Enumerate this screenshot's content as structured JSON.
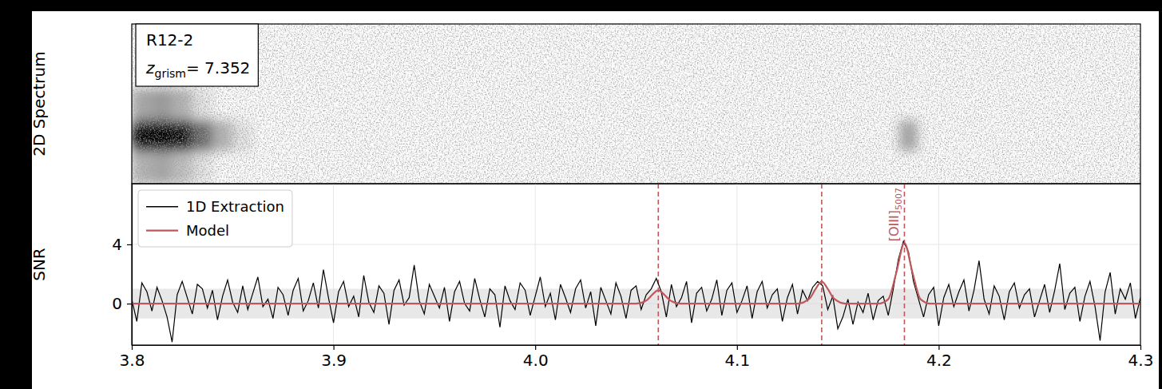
{
  "chart_data": [
    {
      "type": "heatmap",
      "ylabel": "2D Spectrum",
      "annotation": {
        "label": "R12-2",
        "symbol": "z",
        "subscript": "grism",
        "value_text": "= 7.352"
      },
      "xlim": [
        3.8,
        4.3
      ],
      "tick_labels": false,
      "zlim": [
        0,
        1
      ],
      "x_edges": [
        3.8,
        3.81,
        3.82,
        3.83,
        3.84,
        3.85,
        3.86,
        3.87,
        3.88,
        3.89,
        3.9,
        3.91,
        3.92,
        3.93,
        3.94,
        3.95,
        3.96,
        3.97,
        3.98,
        3.99,
        4.0,
        4.01,
        4.02,
        4.03,
        4.04,
        4.05,
        4.06,
        4.07,
        4.08,
        4.09,
        4.1,
        4.11,
        4.12,
        4.13,
        4.14,
        4.15,
        4.16,
        4.17,
        4.18,
        4.19,
        4.2,
        4.21,
        4.22,
        4.23,
        4.24,
        4.25,
        4.26,
        4.27,
        4.28,
        4.29,
        4.3
      ],
      "cells": [
        [
          0,
          0,
          0,
          0,
          0,
          0,
          0,
          0,
          0,
          0,
          0,
          0,
          0,
          0,
          0,
          0,
          0,
          0,
          0,
          0,
          0,
          0,
          0,
          0,
          0,
          0,
          0,
          0,
          0,
          0,
          0,
          0,
          0,
          0,
          0,
          0,
          0,
          0,
          0,
          0,
          0,
          0,
          0,
          0,
          0,
          0,
          0,
          0,
          0,
          0
        ],
        [
          0,
          0,
          0,
          0,
          0,
          0,
          0,
          0,
          0,
          0,
          0,
          0,
          0,
          0,
          0,
          0,
          0,
          0,
          0,
          0,
          0,
          0,
          0,
          0,
          0,
          0,
          0,
          0,
          0,
          0,
          0,
          0,
          0,
          0,
          0,
          0,
          0,
          0,
          0,
          0,
          0,
          0,
          0,
          0,
          0,
          0,
          0,
          0,
          0,
          0
        ],
        [
          0.35,
          0.4,
          0.3,
          0.1,
          0,
          0,
          0,
          0,
          0,
          0,
          0,
          0,
          0,
          0,
          0,
          0,
          0,
          0,
          0,
          0,
          0,
          0,
          0,
          0,
          0,
          0,
          0,
          0,
          0,
          0,
          0,
          0,
          0,
          0,
          0,
          0,
          0,
          0,
          0,
          0,
          0,
          0,
          0,
          0,
          0,
          0,
          0,
          0,
          0,
          0
        ],
        [
          1,
          1,
          0.95,
          0.6,
          0.3,
          0.1,
          0,
          0,
          0,
          0,
          0,
          0,
          0,
          0,
          0,
          0,
          0,
          0,
          0,
          0,
          0,
          0,
          0,
          0,
          0,
          0,
          0,
          0,
          0,
          0,
          0,
          0,
          0,
          0,
          0,
          0,
          0,
          0,
          0.35,
          0,
          0,
          0,
          0,
          0,
          0,
          0,
          0,
          0,
          0,
          0
        ],
        [
          0.3,
          0.35,
          0.25,
          0.1,
          0,
          0,
          0,
          0,
          0,
          0,
          0,
          0,
          0,
          0,
          0,
          0,
          0,
          0,
          0,
          0,
          0,
          0,
          0,
          0,
          0,
          0,
          0,
          0,
          0,
          0,
          0,
          0,
          0,
          0,
          0,
          0,
          0,
          0,
          0,
          0,
          0,
          0,
          0,
          0,
          0,
          0,
          0,
          0,
          0,
          0
        ]
      ]
    },
    {
      "type": "line",
      "ylabel": "SNR",
      "xlim": [
        3.8,
        4.3
      ],
      "ylim": [
        -2.8,
        8.1
      ],
      "xticks": [
        3.8,
        3.9,
        {
          "value": 4.0,
          "label": "4.0"
        },
        4.1,
        4.2,
        4.3
      ],
      "yticks": [
        0,
        4
      ],
      "grid": true,
      "legend": "upper left",
      "band": [
        -1,
        1
      ],
      "vlines": [
        {
          "x": 4.061
        },
        {
          "x": 4.142
        },
        {
          "x": 4.183,
          "label": "[OIII]",
          "label_sub": "5007"
        }
      ],
      "series": [
        {
          "name": "1D Extraction",
          "color": "#000000",
          "line_style": "solid",
          "x": [
            3.8,
            3.8025,
            3.805,
            3.8075,
            3.81,
            3.8125,
            3.815,
            3.8175,
            3.82,
            3.8225,
            3.825,
            3.8275,
            3.83,
            3.8325,
            3.835,
            3.8375,
            3.84,
            3.8425,
            3.845,
            3.8475,
            3.85,
            3.8525,
            3.855,
            3.8575,
            3.86,
            3.8625,
            3.865,
            3.8675,
            3.87,
            3.8725,
            3.875,
            3.8775,
            3.88,
            3.8825,
            3.885,
            3.8875,
            3.89,
            3.8925,
            3.895,
            3.8975,
            3.9,
            3.9025,
            3.905,
            3.9075,
            3.91,
            3.9125,
            3.915,
            3.9175,
            3.92,
            3.9225,
            3.925,
            3.9275,
            3.93,
            3.9325,
            3.935,
            3.9375,
            3.94,
            3.9425,
            3.945,
            3.9475,
            3.95,
            3.9525,
            3.955,
            3.9575,
            3.96,
            3.9625,
            3.965,
            3.9675,
            3.97,
            3.9725,
            3.975,
            3.9775,
            3.98,
            3.9825,
            3.985,
            3.9875,
            3.99,
            3.9925,
            3.995,
            3.9975,
            4.0,
            4.0025,
            4.005,
            4.0075,
            4.01,
            4.0125,
            4.015,
            4.0175,
            4.02,
            4.0225,
            4.025,
            4.0275,
            4.03,
            4.0325,
            4.035,
            4.0375,
            4.04,
            4.0425,
            4.045,
            4.0475,
            4.05,
            4.0525,
            4.055,
            4.0575,
            4.06,
            4.0625,
            4.065,
            4.0675,
            4.07,
            4.0725,
            4.075,
            4.0775,
            4.08,
            4.0825,
            4.085,
            4.0875,
            4.09,
            4.0925,
            4.095,
            4.0975,
            4.1,
            4.1025,
            4.105,
            4.1075,
            4.11,
            4.1125,
            4.115,
            4.1175,
            4.12,
            4.1225,
            4.125,
            4.1275,
            4.13,
            4.1325,
            4.135,
            4.1375,
            4.14,
            4.1425,
            4.145,
            4.1475,
            4.15,
            4.1525,
            4.155,
            4.1575,
            4.16,
            4.1625,
            4.165,
            4.1675,
            4.17,
            4.1725,
            4.175,
            4.1775,
            4.18,
            4.1825,
            4.185,
            4.1875,
            4.19,
            4.1925,
            4.195,
            4.1975,
            4.2,
            4.2025,
            4.205,
            4.2075,
            4.21,
            4.2125,
            4.215,
            4.2175,
            4.22,
            4.2225,
            4.225,
            4.2275,
            4.23,
            4.2325,
            4.235,
            4.2375,
            4.24,
            4.2425,
            4.245,
            4.2475,
            4.25,
            4.2525,
            4.255,
            4.2575,
            4.26,
            4.2625,
            4.265,
            4.2675,
            4.27,
            4.2725,
            4.275,
            4.2775,
            4.28,
            4.2825,
            4.285,
            4.2875,
            4.29,
            4.2925,
            4.295,
            4.2975,
            4.3
          ],
          "values": [
            0.3,
            -1.2,
            1.4,
            0.8,
            -0.5,
            1.1,
            0.2,
            -0.9,
            -2.6,
            0.6,
            1.5,
            0.4,
            -0.7,
            1.3,
            1.0,
            -0.3,
            0.9,
            -1.1,
            0.5,
            1.6,
            0.1,
            -0.6,
            1.2,
            -0.4,
            0.7,
            1.8,
            -0.2,
            0.3,
            -1.0,
            1.1,
            0.6,
            -0.8,
            0.9,
            1.7,
            -0.5,
            0.2,
            1.4,
            -0.3,
            2.3,
            0.4,
            -1.3,
            0.8,
            1.5,
            -0.2,
            0.5,
            -0.9,
            1.9,
            0.1,
            -0.6,
            1.2,
            0.7,
            -1.4,
            0.9,
            1.6,
            -0.1,
            0.4,
            2.6,
            0.2,
            -0.7,
            1.3,
            0.5,
            -0.3,
            1.1,
            -1.2,
            0.8,
            1.5,
            0.0,
            -0.5,
            1.7,
            0.3,
            -0.9,
            1.0,
            0.6,
            -1.6,
            1.2,
            0.2,
            -0.4,
            1.4,
            0.9,
            -0.8,
            0.5,
            1.8,
            -0.2,
            0.7,
            -1.1,
            1.3,
            0.4,
            -0.6,
            1.0,
            1.6,
            -0.3,
            0.8,
            -1.5,
            1.1,
            0.2,
            -0.7,
            1.4,
            0.5,
            -1.0,
            0.9,
            1.2,
            -0.4,
            0.6,
            1.0,
            1.7,
            0.8,
            -0.9,
            1.3,
            -0.2,
            0.4,
            1.5,
            -1.3,
            0.7,
            1.1,
            -0.5,
            0.3,
            1.6,
            -0.8,
            0.9,
            1.4,
            -0.6,
            0.2,
            1.2,
            -1.0,
            0.8,
            1.5,
            -0.3,
            0.6,
            1.0,
            -1.2,
            0.4,
            1.3,
            -0.7,
            0.9,
            0.2,
            1.1,
            1.5,
            1.2,
            -0.4,
            0.5,
            -1.7,
            -0.9,
            0.3,
            -1.4,
            0.1,
            -0.6,
            0.7,
            -1.1,
            0.2,
            0.5,
            -0.8,
            1.0,
            3.0,
            4.2,
            3.5,
            1.5,
            0.3,
            -0.9,
            0.6,
            1.1,
            -1.5,
            0.4,
            1.3,
            -0.2,
            0.8,
            1.6,
            -0.5,
            0.9,
            2.9,
            0.3,
            -0.7,
            1.2,
            0.5,
            -1.1,
            0.8,
            1.4,
            -0.3,
            0.6,
            1.0,
            -0.9,
            0.2,
            1.3,
            -0.6,
            0.9,
            2.7,
            -0.4,
            0.7,
            1.1,
            -1.2,
            0.5,
            1.5,
            -0.2,
            -2.5,
            0.8,
            2.1,
            -0.7,
            1.0,
            0.3,
            1.4,
            -1.0,
            0.4
          ]
        },
        {
          "name": "Model",
          "color": "#c0575a",
          "line_style": "solid",
          "x": [
            3.8,
            4.05,
            4.055,
            4.058,
            4.061,
            4.064,
            4.067,
            4.072,
            4.13,
            4.136,
            4.139,
            4.142,
            4.145,
            4.148,
            4.154,
            4.17,
            4.175,
            4.179,
            4.183,
            4.187,
            4.191,
            4.196,
            4.3
          ],
          "values": [
            0,
            0,
            0.2,
            0.6,
            0.9,
            0.6,
            0.2,
            0,
            0,
            0.35,
            1.0,
            1.5,
            1.0,
            0.35,
            0,
            0,
            0.3,
            2.1,
            4.1,
            2.1,
            0.3,
            0,
            0
          ]
        }
      ]
    }
  ]
}
